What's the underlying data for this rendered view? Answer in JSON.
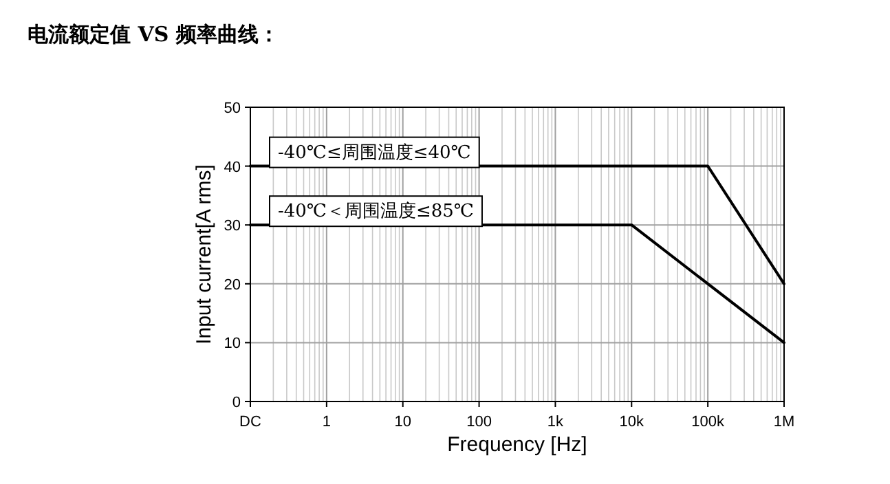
{
  "chart_data": {
    "type": "line",
    "title": "电流额定值 VS 频率曲线：",
    "xlabel": "Frequency [Hz]",
    "ylabel": "Input current[A rms]",
    "log": "x",
    "grid": true,
    "legend": false,
    "marker": "none",
    "line_style": "solid",
    "xlim": [
      0.1,
      1000000
    ],
    "xticks": [
      {
        "value": 0.1,
        "label": "DC"
      },
      1,
      10,
      100,
      {
        "value": 1000,
        "label": "1k"
      },
      {
        "value": 10000,
        "label": "10k"
      },
      {
        "value": 100000,
        "label": "100k"
      },
      {
        "value": 1000000,
        "label": "1M"
      }
    ],
    "ylim": [
      0,
      50
    ],
    "yticks": [
      0,
      10,
      20,
      30,
      40,
      50
    ],
    "series": [
      {
        "name": "-40℃≤周围温度≤40℃",
        "color": "#000000",
        "x": [
          0.1,
          100000,
          1000000
        ],
        "values": [
          40,
          40,
          20
        ]
      },
      {
        "name": "-40℃＜周围温度≤85℃",
        "color": "#000000",
        "x": [
          0.1,
          10000,
          1000000
        ],
        "values": [
          30,
          30,
          10
        ]
      }
    ]
  }
}
